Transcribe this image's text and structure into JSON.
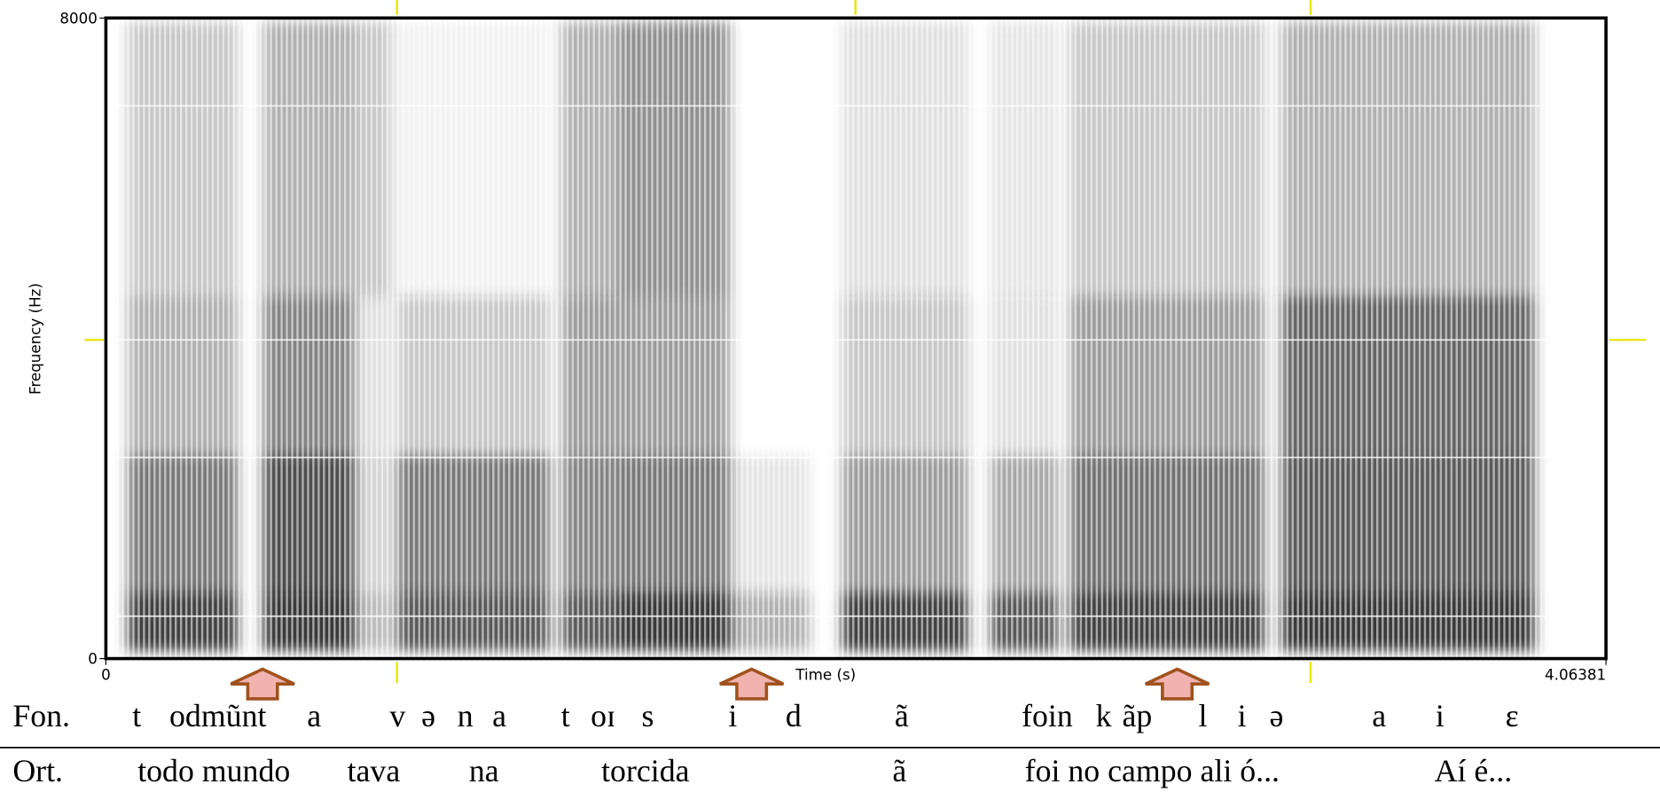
{
  "chart_data": {
    "type": "spectrogram",
    "xlabel": "Time (s)",
    "ylabel": "Frequency (Hz)",
    "xlim": [
      0,
      4.06381
    ],
    "ylim": [
      0,
      8000
    ],
    "xticks": [
      0,
      4.06381
    ],
    "yticks": [
      0,
      8000
    ],
    "tiers": [
      {
        "name": "Fon.",
        "labels": [
          "t",
          "odmũnt",
          "a",
          "v",
          "ə",
          "n",
          "a",
          "t",
          "oɪ",
          "s",
          "i",
          "d",
          "ã",
          "foin",
          "k",
          "ãp",
          "l",
          "i",
          "ə",
          "a",
          "i",
          "ɛ"
        ]
      },
      {
        "name": "Ort.",
        "labels": [
          "todo mundo",
          "tava",
          "na",
          "torcida",
          "ã",
          "foi no campo ali ó...",
          "Aí é..."
        ]
      }
    ]
  }
}
